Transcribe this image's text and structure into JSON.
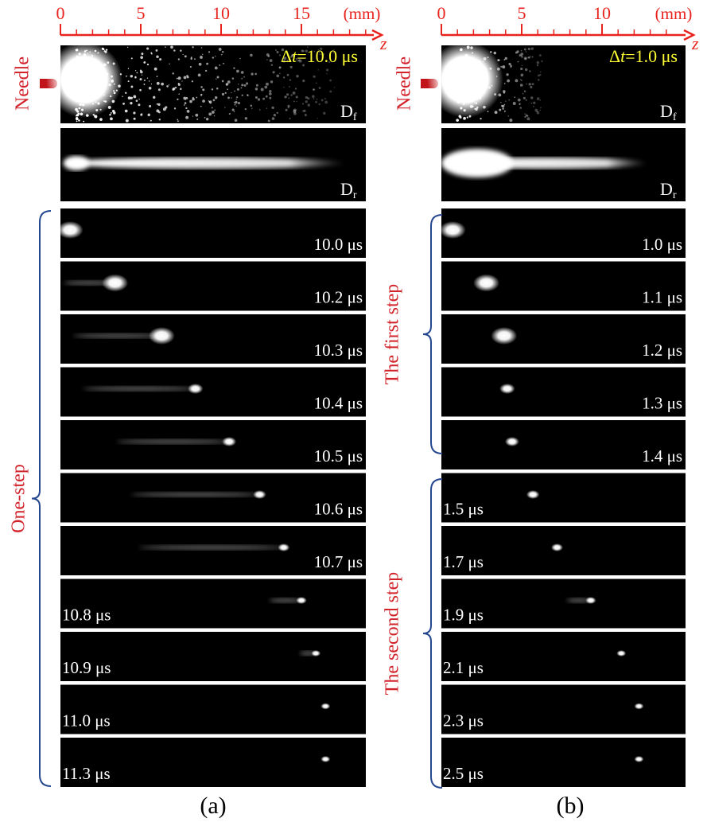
{
  "panels": [
    {
      "label": "(a)",
      "ruler": {
        "unit": "(mm)",
        "axis": "z",
        "ticks": [
          0,
          5,
          10,
          15
        ]
      },
      "needle": "Needle",
      "interval": {
        "delta": "Δ",
        "var": "t",
        "rest": "=10.0 μs"
      },
      "front_image": {
        "letter": "D",
        "sub": "f"
      },
      "rear_image": {
        "letter": "D",
        "sub": "r"
      },
      "brackets": [
        "One-step"
      ],
      "frames": [
        "10.0 μs",
        "10.2 μs",
        "10.3 μs",
        "10.4 μs",
        "10.5 μs",
        "10.6 μs",
        "10.7 μs",
        "10.8 μs",
        "10.9 μs",
        "11.0 μs",
        "11.3 μs"
      ]
    },
    {
      "label": "(b)",
      "ruler": {
        "unit": "(mm)",
        "axis": "z",
        "ticks": [
          0,
          5,
          10
        ]
      },
      "needle": "Needle",
      "interval": {
        "delta": "Δ",
        "var": "t",
        "rest": "=1.0 μs"
      },
      "front_image": {
        "letter": "D",
        "sub": "f"
      },
      "rear_image": {
        "letter": "D",
        "sub": "r"
      },
      "brackets": [
        "The first step",
        "The second step"
      ],
      "frames": [
        "1.0 μs",
        "1.1 μs",
        "1.2 μs",
        "1.3 μs",
        "1.4 μs",
        "1.5 μs",
        "1.7 μs",
        "1.9 μs",
        "2.1 μs",
        "2.3 μs",
        "2.5 μs"
      ]
    }
  ]
}
